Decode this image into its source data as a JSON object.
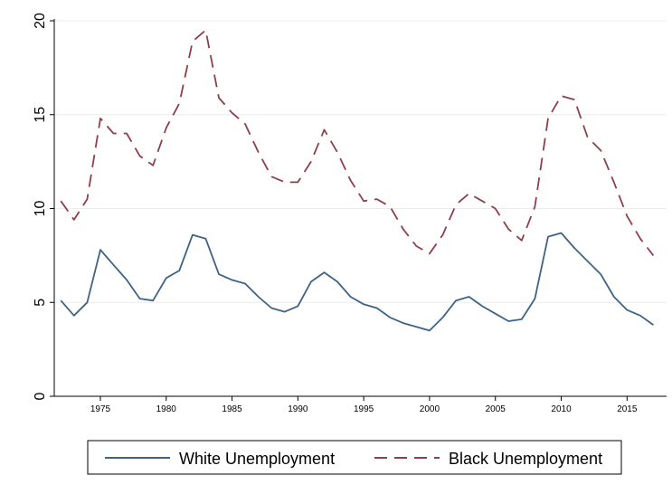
{
  "chart_data": {
    "type": "line",
    "title": "",
    "xlabel": "",
    "ylabel": "",
    "xlim": [
      1971.5,
      2018
    ],
    "ylim": [
      0,
      20
    ],
    "x_ticks": [
      1975,
      1980,
      1985,
      1990,
      1995,
      2000,
      2005,
      2010,
      2015
    ],
    "y_ticks": [
      0,
      5,
      10,
      15,
      20
    ],
    "grid": "horizontal",
    "legend_position": "bottom",
    "x": [
      1972,
      1973,
      1974,
      1975,
      1976,
      1977,
      1978,
      1979,
      1980,
      1981,
      1982,
      1983,
      1984,
      1985,
      1986,
      1987,
      1988,
      1989,
      1990,
      1991,
      1992,
      1993,
      1994,
      1995,
      1996,
      1997,
      1998,
      1999,
      2000,
      2001,
      2002,
      2003,
      2004,
      2005,
      2006,
      2007,
      2008,
      2009,
      2010,
      2011,
      2012,
      2013,
      2014,
      2015,
      2016,
      2017
    ],
    "series": [
      {
        "name": "White Unemployment",
        "color": "#3e6384",
        "dash": "solid",
        "values": [
          5.1,
          4.3,
          5.0,
          7.8,
          7.0,
          6.2,
          5.2,
          5.1,
          6.3,
          6.7,
          8.6,
          8.4,
          6.5,
          6.2,
          6.0,
          5.3,
          4.7,
          4.5,
          4.8,
          6.1,
          6.6,
          6.1,
          5.3,
          4.9,
          4.7,
          4.2,
          3.9,
          3.7,
          3.5,
          4.2,
          5.1,
          5.3,
          4.8,
          4.4,
          4.0,
          4.1,
          5.2,
          8.5,
          8.7,
          7.9,
          7.2,
          6.5,
          5.3,
          4.6,
          4.3,
          3.8
        ]
      },
      {
        "name": "Black Unemployment",
        "color": "#8d3f4c",
        "dash": "dashed",
        "values": [
          10.4,
          9.4,
          10.5,
          14.8,
          14.0,
          14.0,
          12.8,
          12.3,
          14.3,
          15.6,
          18.9,
          19.5,
          15.9,
          15.1,
          14.5,
          13.0,
          11.7,
          11.4,
          11.4,
          12.5,
          14.2,
          13.0,
          11.5,
          10.4,
          10.5,
          10.1,
          8.9,
          8.0,
          7.6,
          8.6,
          10.2,
          10.8,
          10.4,
          10.0,
          8.9,
          8.3,
          10.1,
          14.8,
          16.0,
          15.8,
          13.8,
          13.1,
          11.4,
          9.6,
          8.4,
          7.5
        ]
      }
    ]
  }
}
